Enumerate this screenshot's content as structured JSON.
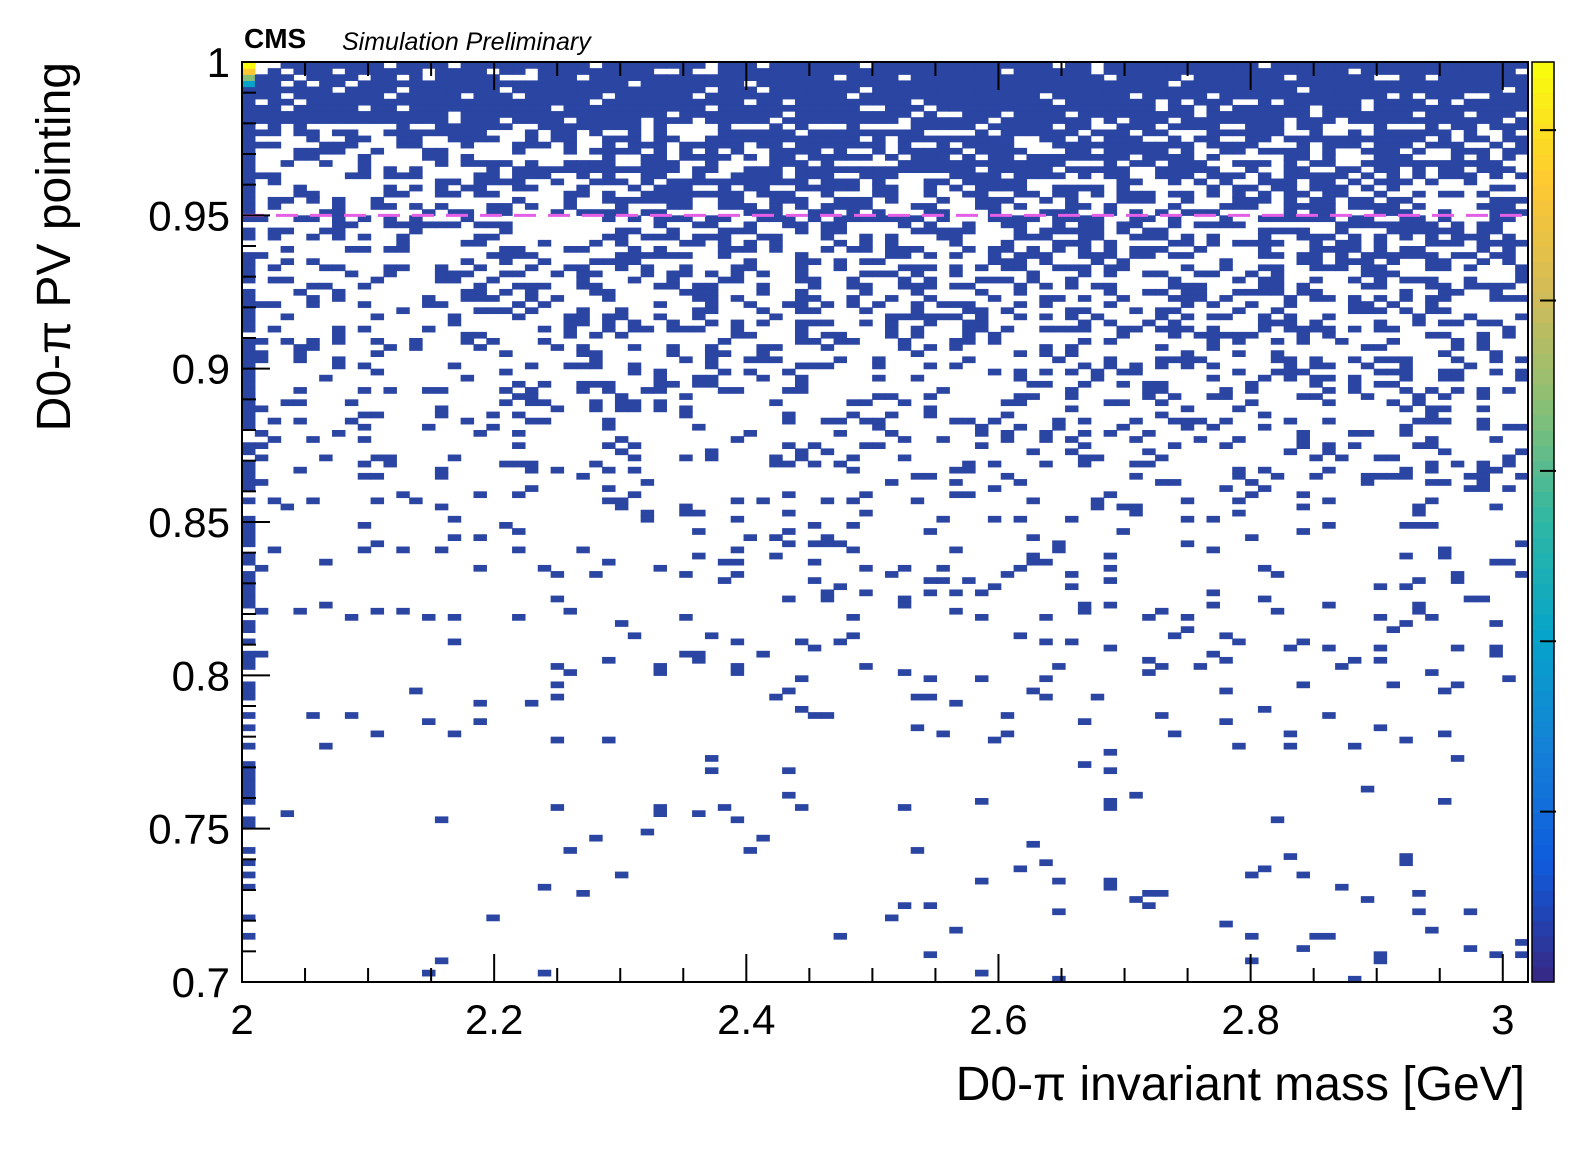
{
  "chart_data": {
    "type": "heatmap",
    "experiment_label": "CMS",
    "status_label": "Simulation Preliminary",
    "xlabel": "D0-π invariant mass [GeV]",
    "ylabel": "D0-π PV pointing",
    "xlim": [
      2.0,
      3.02
    ],
    "ylim": [
      0.7,
      1.0
    ],
    "x_ticks": [
      "2",
      "2.2",
      "2.4",
      "2.6",
      "2.8",
      "3"
    ],
    "x_tick_values": [
      2.0,
      2.2,
      2.4,
      2.6,
      2.8,
      3.0
    ],
    "y_ticks": [
      "0.7",
      "0.75",
      "0.8",
      "0.85",
      "0.9",
      "0.95",
      "1"
    ],
    "y_tick_values": [
      0.7,
      0.75,
      0.8,
      0.85,
      0.9,
      0.95,
      1.0
    ],
    "bins": {
      "nx": 100,
      "ny": 150
    },
    "colormap": "parula",
    "colorbar_colors": [
      "#352a87",
      "#0f5cdd",
      "#1481d6",
      "#06a4ca",
      "#2eb7a4",
      "#87bf77",
      "#d1bb59",
      "#fec832",
      "#f9fb0e"
    ],
    "background_bin_color": "#2b45a3",
    "cut_line": {
      "y": 0.95,
      "color": "#e35fe6",
      "style": "dashed"
    },
    "description_of_content": "Sparse 2D histogram; occupancy increases strongly toward pointing = 1; peak bin near mass = 2.0 GeV, pointing = 1.0; first mass column densely populated"
  }
}
